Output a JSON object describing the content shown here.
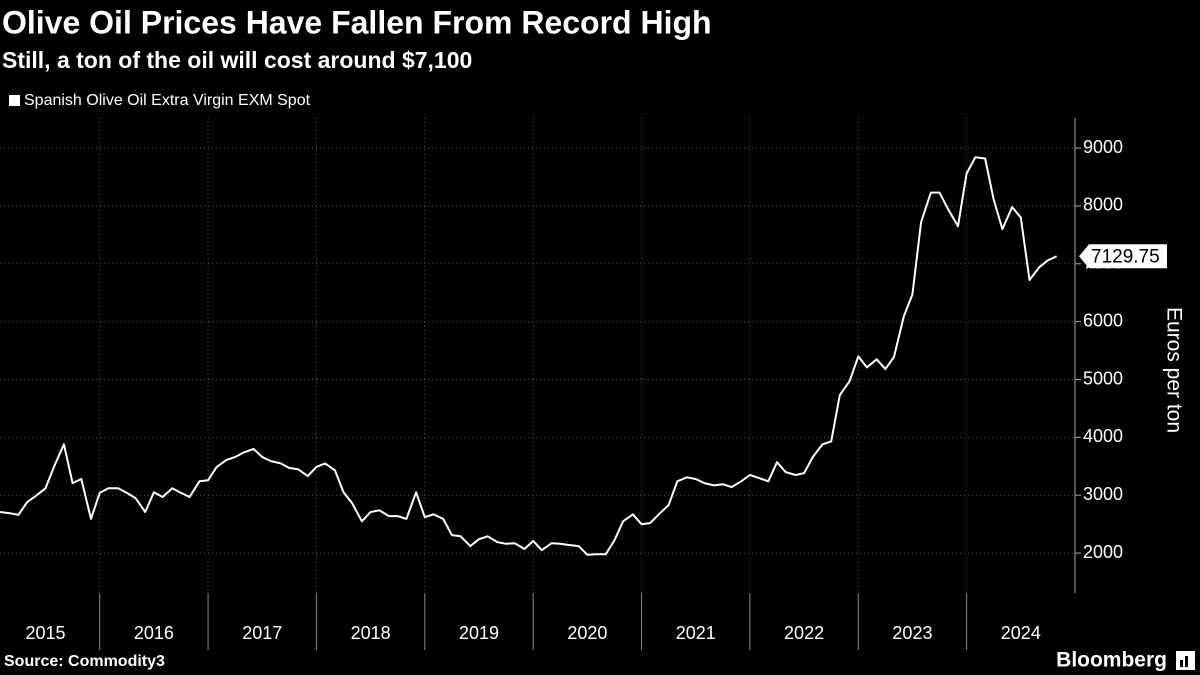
{
  "chart_data": {
    "type": "line",
    "title": "Olive Oil Prices Have Fallen From Record High",
    "subtitle": "Still, a ton of the oil will cost around $7,100",
    "y_axis_label": "Euros per ton",
    "source": "Source: Commodity3",
    "brand": "Bloomberg",
    "x": [
      2015.08,
      2015.17,
      2015.25,
      2015.33,
      2015.42,
      2015.5,
      2015.58,
      2015.67,
      2015.75,
      2015.83,
      2015.92,
      2016,
      2016.08,
      2016.17,
      2016.25,
      2016.33,
      2016.42,
      2016.5,
      2016.58,
      2016.67,
      2016.75,
      2016.83,
      2016.92,
      2017,
      2017.08,
      2017.17,
      2017.25,
      2017.33,
      2017.42,
      2017.5,
      2017.58,
      2017.67,
      2017.75,
      2017.83,
      2017.92,
      2018,
      2018.08,
      2018.17,
      2018.25,
      2018.33,
      2018.42,
      2018.5,
      2018.58,
      2018.67,
      2018.75,
      2018.83,
      2018.92,
      2019,
      2019.08,
      2019.17,
      2019.25,
      2019.33,
      2019.42,
      2019.5,
      2019.58,
      2019.67,
      2019.75,
      2019.83,
      2019.92,
      2020,
      2020.08,
      2020.17,
      2020.25,
      2020.33,
      2020.42,
      2020.5,
      2020.58,
      2020.67,
      2020.75,
      2020.83,
      2020.92,
      2021,
      2021.08,
      2021.17,
      2021.25,
      2021.33,
      2021.42,
      2021.5,
      2021.58,
      2021.67,
      2021.75,
      2021.83,
      2021.92,
      2022,
      2022.08,
      2022.17,
      2022.25,
      2022.33,
      2022.42,
      2022.5,
      2022.58,
      2022.67,
      2022.75,
      2022.83,
      2022.92,
      2023,
      2023.08,
      2023.17,
      2023.25,
      2023.33,
      2023.42,
      2023.5,
      2023.58,
      2023.67,
      2023.75,
      2023.83,
      2023.92,
      2024,
      2024.08,
      2024.17,
      2024.25,
      2024.33,
      2024.42,
      2024.5,
      2024.58,
      2024.67,
      2024.75,
      2024.83
    ],
    "series": [
      {
        "name": "Spanish Olive Oil Extra Virgin EXM Spot",
        "color": "#ffffff",
        "values": [
          2710,
          2690,
          2660,
          2880,
          3000,
          3120,
          3500,
          3880,
          3210,
          3280,
          2590,
          3040,
          3120,
          3120,
          3040,
          2950,
          2710,
          3050,
          2970,
          3120,
          3040,
          2970,
          3240,
          3260,
          3490,
          3610,
          3660,
          3740,
          3800,
          3660,
          3590,
          3550,
          3470,
          3450,
          3330,
          3490,
          3550,
          3430,
          3050,
          2860,
          2550,
          2710,
          2740,
          2640,
          2640,
          2590,
          3050,
          2620,
          2670,
          2590,
          2310,
          2290,
          2120,
          2240,
          2290,
          2190,
          2160,
          2170,
          2070,
          2210,
          2050,
          2170,
          2160,
          2140,
          2120,
          1970,
          1980,
          1980,
          2220,
          2550,
          2670,
          2500,
          2520,
          2690,
          2830,
          3240,
          3310,
          3280,
          3210,
          3170,
          3190,
          3140,
          3240,
          3350,
          3300,
          3240,
          3570,
          3400,
          3350,
          3380,
          3660,
          3880,
          3930,
          4730,
          4970,
          5400,
          5210,
          5350,
          5180,
          5390,
          6090,
          6470,
          7720,
          8230,
          8230,
          7940,
          7650,
          8560,
          8840,
          8820,
          8110,
          7600,
          7980,
          7800,
          6720,
          6940,
          7060,
          7129.75
        ]
      }
    ],
    "xlim": [
      2015.08,
      2025
    ],
    "xticks": [
      {
        "value": 2015.5,
        "label": "2015"
      },
      {
        "value": 2016.5,
        "label": "2016"
      },
      {
        "value": 2017.5,
        "label": "2017"
      },
      {
        "value": 2018.5,
        "label": "2018"
      },
      {
        "value": 2019.5,
        "label": "2019"
      },
      {
        "value": 2020.5,
        "label": "2020"
      },
      {
        "value": 2021.5,
        "label": "2021"
      },
      {
        "value": 2022.5,
        "label": "2022"
      },
      {
        "value": 2023.5,
        "label": "2023"
      },
      {
        "value": 2024.5,
        "label": "2024"
      }
    ],
    "ylim": [
      1310,
      9520
    ],
    "yticks": [
      2000,
      3000,
      4000,
      5000,
      6000,
      7000,
      8000,
      9000
    ],
    "grid": true
  }
}
